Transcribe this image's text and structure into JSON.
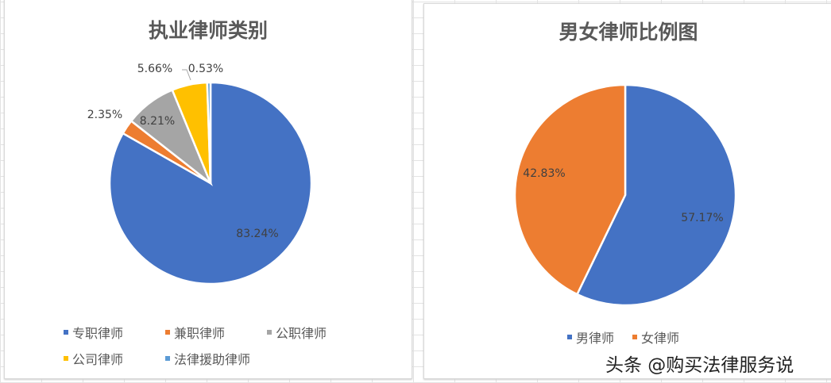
{
  "chart_data": [
    {
      "type": "pie",
      "title": "执业律师类别",
      "categories": [
        "专职律师",
        "兼职律师",
        "公职律师",
        "公司律师",
        "法律援助律师"
      ],
      "values": [
        83.24,
        2.35,
        8.21,
        5.66,
        0.53
      ],
      "labels": [
        "83.24%",
        "2.35%",
        "8.21%",
        "5.66%",
        "0.53%"
      ],
      "colors": [
        "#4472c4",
        "#ed7d31",
        "#a5a5a5",
        "#ffc000",
        "#5b9bd5"
      ],
      "legend": "bottom"
    },
    {
      "type": "pie",
      "title": "男女律师比例图",
      "categories": [
        "男律师",
        "女律师"
      ],
      "values": [
        57.17,
        42.83
      ],
      "labels": [
        "57.17%",
        "42.83%"
      ],
      "colors": [
        "#4472c4",
        "#ed7d31"
      ],
      "legend": "bottom"
    }
  ],
  "watermark": "头条 @购买法律服务说"
}
